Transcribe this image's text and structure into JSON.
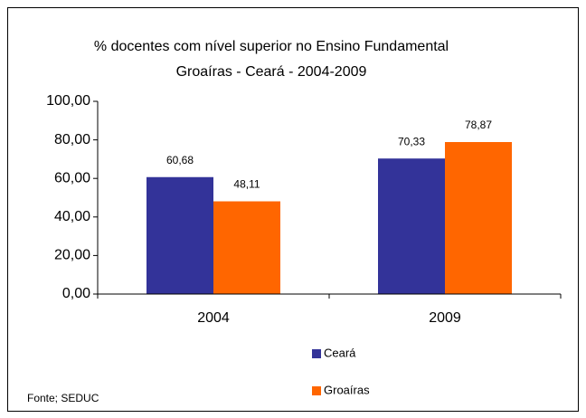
{
  "chart_data": {
    "type": "bar",
    "title": "% docentes com nível superior no Ensino Fundamental",
    "subtitle": "Groaíras - Ceará - 2004-2009",
    "categories": [
      "2004",
      "2009"
    ],
    "series": [
      {
        "name": "Ceará",
        "color": "#333399",
        "values": [
          60.68,
          70.33
        ],
        "value_labels": [
          "60,68",
          "70,33"
        ]
      },
      {
        "name": "Groaíras",
        "color": "#ff6600",
        "values": [
          48.11,
          78.87
        ],
        "value_labels": [
          "48,11",
          "78,87"
        ]
      }
    ],
    "ylim": [
      0,
      100
    ],
    "yticks": [
      {
        "value": 0,
        "label": "0,00"
      },
      {
        "value": 20,
        "label": "20,00"
      },
      {
        "value": 40,
        "label": "40,00"
      },
      {
        "value": 60,
        "label": "60,00"
      },
      {
        "value": 80,
        "label": "80,00"
      },
      {
        "value": 100,
        "label": "100,00"
      }
    ],
    "legend": "bottom",
    "source": "Fonte; SEDUC"
  }
}
